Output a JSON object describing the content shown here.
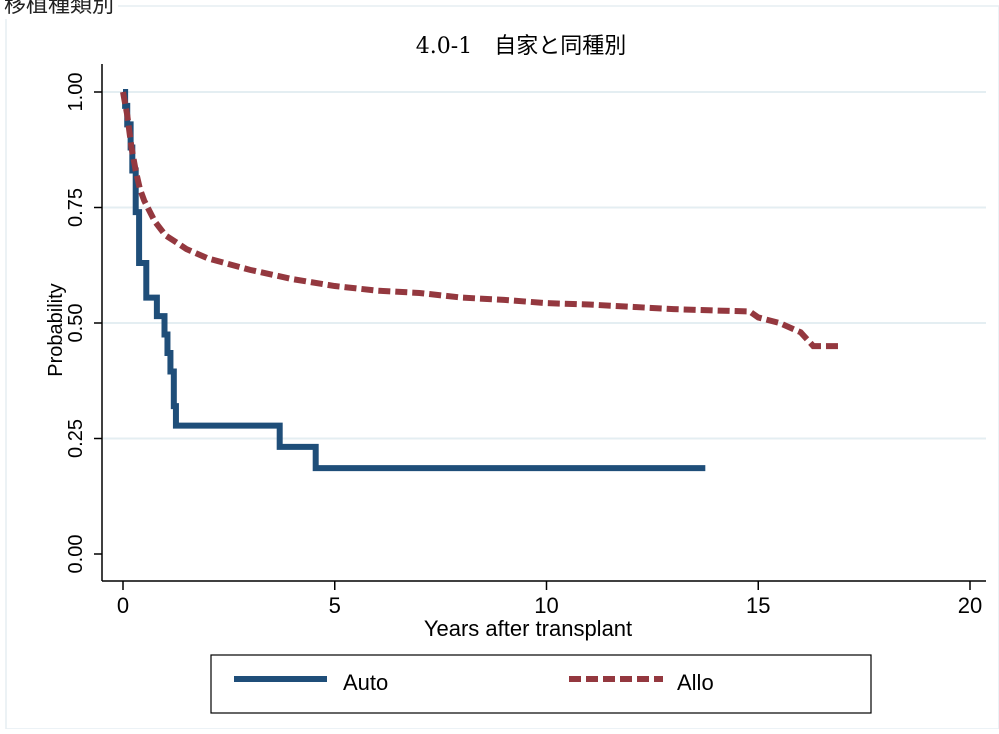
{
  "frame_label": "移植種類別",
  "chart_data": {
    "type": "line",
    "title": "4.0-1　自家と同種別",
    "xlabel": "Years after transplant",
    "ylabel": "Probability",
    "xlim": [
      0,
      20
    ],
    "ylim": [
      0,
      1
    ],
    "xticks": [
      "0",
      "5",
      "10",
      "15",
      "20"
    ],
    "yticks": [
      "0.00",
      "0.25",
      "0.50",
      "0.75",
      "1.00"
    ],
    "grid": true,
    "legend_position": "bottom",
    "series": [
      {
        "name": "Auto",
        "color": "#1f4e79",
        "style": "solid",
        "step": true,
        "points": [
          [
            0,
            1.0
          ],
          [
            0.05,
            0.97
          ],
          [
            0.1,
            0.93
          ],
          [
            0.18,
            0.88
          ],
          [
            0.22,
            0.83
          ],
          [
            0.3,
            0.74
          ],
          [
            0.38,
            0.63
          ],
          [
            0.55,
            0.555
          ],
          [
            0.8,
            0.515
          ],
          [
            0.98,
            0.475
          ],
          [
            1.05,
            0.435
          ],
          [
            1.12,
            0.395
          ],
          [
            1.2,
            0.32
          ],
          [
            1.25,
            0.278
          ],
          [
            3.7,
            0.232
          ],
          [
            4.55,
            0.186
          ],
          [
            13.75,
            0.186
          ]
        ]
      },
      {
        "name": "Allo",
        "color": "#94383f",
        "style": "dashed",
        "step": false,
        "points": [
          [
            0,
            1.0
          ],
          [
            0.1,
            0.95
          ],
          [
            0.2,
            0.88
          ],
          [
            0.3,
            0.83
          ],
          [
            0.4,
            0.79
          ],
          [
            0.5,
            0.765
          ],
          [
            0.75,
            0.72
          ],
          [
            1,
            0.69
          ],
          [
            1.5,
            0.66
          ],
          [
            2,
            0.64
          ],
          [
            3,
            0.615
          ],
          [
            4,
            0.595
          ],
          [
            5,
            0.58
          ],
          [
            6,
            0.57
          ],
          [
            7,
            0.565
          ],
          [
            8,
            0.555
          ],
          [
            9,
            0.55
          ],
          [
            10,
            0.543
          ],
          [
            11,
            0.54
          ],
          [
            12,
            0.535
          ],
          [
            13,
            0.53
          ],
          [
            14,
            0.527
          ],
          [
            14.8,
            0.525
          ],
          [
            15.0,
            0.512
          ],
          [
            15.5,
            0.5
          ],
          [
            16.0,
            0.48
          ],
          [
            16.3,
            0.45
          ],
          [
            17.0,
            0.45
          ]
        ]
      }
    ]
  }
}
